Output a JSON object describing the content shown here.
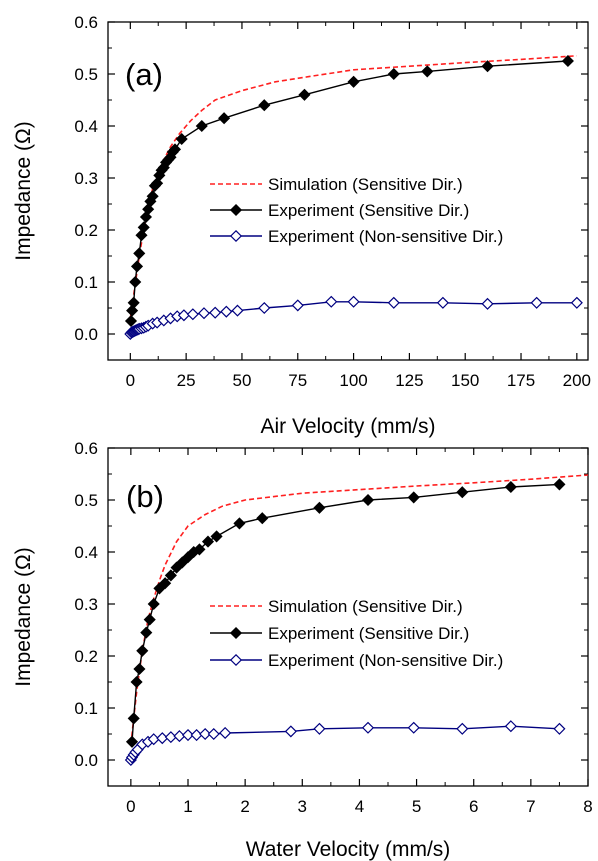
{
  "chart_data": [
    {
      "type": "line",
      "panel_label": "(a)",
      "xlabel": "Air Velocity (mm/s)",
      "ylabel": "Impedance (Ω)",
      "xlim": [
        -10,
        205
      ],
      "ylim": [
        -0.05,
        0.6
      ],
      "xticks": [
        0,
        25,
        50,
        75,
        100,
        125,
        150,
        175,
        200
      ],
      "yticks": [
        0.0,
        0.1,
        0.2,
        0.3,
        0.4,
        0.5,
        0.6
      ],
      "ytick_labels": [
        "0.0",
        "0.1",
        "0.2",
        "0.3",
        "0.4",
        "0.5",
        "0.6"
      ],
      "grid": false,
      "legend_position": "center-right",
      "series": [
        {
          "name": "Simulation (Sensitive Dir.)",
          "style": "dashed",
          "color": "#ff2020",
          "marker": "none",
          "x": [
            0,
            2,
            4,
            6,
            8,
            10,
            12,
            15,
            18,
            22,
            27,
            32,
            38,
            50,
            65,
            80,
            100,
            125,
            150,
            175,
            200
          ],
          "y": [
            0.03,
            0.09,
            0.15,
            0.2,
            0.245,
            0.28,
            0.305,
            0.335,
            0.36,
            0.385,
            0.41,
            0.43,
            0.45,
            0.468,
            0.485,
            0.495,
            0.508,
            0.515,
            0.522,
            0.528,
            0.535
          ]
        },
        {
          "name": "Experiment (Sensitive Dir.)",
          "style": "solid",
          "color": "#000000",
          "marker": "filled-diamond",
          "x": [
            0.3,
            0.8,
            1.5,
            2.2,
            3,
            4,
            5,
            6,
            7,
            8,
            9,
            10,
            11,
            12,
            13,
            14,
            15,
            16,
            17,
            18,
            19,
            20,
            23,
            32,
            42,
            60,
            78,
            100,
            118,
            133,
            160,
            196
          ],
          "y": [
            0.025,
            0.045,
            0.06,
            0.1,
            0.13,
            0.155,
            0.19,
            0.205,
            0.225,
            0.24,
            0.255,
            0.265,
            0.285,
            0.29,
            0.305,
            0.315,
            0.32,
            0.33,
            0.335,
            0.34,
            0.35,
            0.355,
            0.375,
            0.4,
            0.415,
            0.44,
            0.46,
            0.485,
            0.5,
            0.505,
            0.515,
            0.525
          ]
        },
        {
          "name": "Experiment (Non-sensitive Dir.)",
          "style": "solid",
          "color": "#000080",
          "marker": "open-diamond",
          "x": [
            0,
            0.5,
            1,
            1.5,
            2,
            2.5,
            3,
            3.5,
            4,
            5,
            6,
            7,
            8,
            10,
            12,
            15,
            18,
            21,
            24,
            28,
            33,
            38,
            43,
            48,
            60,
            75,
            90,
            100,
            118,
            140,
            160,
            182,
            200
          ],
          "y": [
            0.0,
            0.003,
            0.004,
            0.005,
            0.006,
            0.007,
            0.008,
            0.009,
            0.01,
            0.011,
            0.012,
            0.014,
            0.016,
            0.02,
            0.022,
            0.026,
            0.03,
            0.034,
            0.036,
            0.038,
            0.04,
            0.041,
            0.043,
            0.045,
            0.05,
            0.055,
            0.062,
            0.062,
            0.06,
            0.06,
            0.058,
            0.06,
            0.06
          ]
        }
      ]
    },
    {
      "type": "line",
      "panel_label": "(b)",
      "xlabel": "Water Velocity (mm/s)",
      "ylabel": "Impedance (Ω)",
      "xlim": [
        -0.4,
        8
      ],
      "ylim": [
        -0.05,
        0.6
      ],
      "xticks": [
        0,
        1,
        2,
        3,
        4,
        5,
        6,
        7,
        8
      ],
      "yticks": [
        0.0,
        0.1,
        0.2,
        0.3,
        0.4,
        0.5,
        0.6
      ],
      "ytick_labels": [
        "0.0",
        "0.1",
        "0.2",
        "0.3",
        "0.4",
        "0.5",
        "0.6"
      ],
      "grid": false,
      "legend_position": "center-right",
      "series": [
        {
          "name": "Simulation (Sensitive Dir.)",
          "style": "dashed",
          "color": "#ff2020",
          "marker": "none",
          "x": [
            0,
            0.05,
            0.1,
            0.15,
            0.2,
            0.3,
            0.4,
            0.5,
            0.6,
            0.8,
            1.0,
            1.3,
            1.6,
            2.0,
            3.0,
            4.0,
            5.0,
            6.0,
            7.0,
            8.0
          ],
          "y": [
            0.03,
            0.08,
            0.13,
            0.17,
            0.21,
            0.27,
            0.31,
            0.345,
            0.375,
            0.42,
            0.45,
            0.472,
            0.488,
            0.5,
            0.513,
            0.52,
            0.527,
            0.533,
            0.54,
            0.548
          ]
        },
        {
          "name": "Experiment (Sensitive Dir.)",
          "style": "solid",
          "color": "#000000",
          "marker": "filled-diamond",
          "x": [
            0.02,
            0.05,
            0.1,
            0.15,
            0.2,
            0.27,
            0.33,
            0.4,
            0.5,
            0.6,
            0.7,
            0.8,
            0.9,
            1.0,
            1.1,
            1.2,
            1.35,
            1.5,
            1.9,
            2.3,
            3.3,
            4.15,
            4.95,
            5.8,
            6.65,
            7.5
          ],
          "y": [
            0.035,
            0.08,
            0.15,
            0.175,
            0.21,
            0.245,
            0.27,
            0.3,
            0.33,
            0.34,
            0.355,
            0.37,
            0.38,
            0.39,
            0.4,
            0.405,
            0.42,
            0.43,
            0.455,
            0.465,
            0.485,
            0.5,
            0.505,
            0.515,
            0.525,
            0.53
          ]
        },
        {
          "name": "Experiment (Non-sensitive Dir.)",
          "style": "solid",
          "color": "#000080",
          "marker": "open-diamond",
          "x": [
            0.0,
            0.02,
            0.05,
            0.08,
            0.12,
            0.2,
            0.3,
            0.4,
            0.55,
            0.7,
            0.85,
            1.0,
            1.15,
            1.3,
            1.45,
            1.65,
            2.8,
            3.3,
            4.15,
            4.95,
            5.8,
            6.65,
            7.5
          ],
          "y": [
            0.0,
            0.005,
            0.01,
            0.015,
            0.02,
            0.03,
            0.035,
            0.04,
            0.042,
            0.044,
            0.046,
            0.048,
            0.048,
            0.05,
            0.05,
            0.052,
            0.055,
            0.06,
            0.062,
            0.062,
            0.06,
            0.065,
            0.06
          ]
        }
      ]
    }
  ]
}
